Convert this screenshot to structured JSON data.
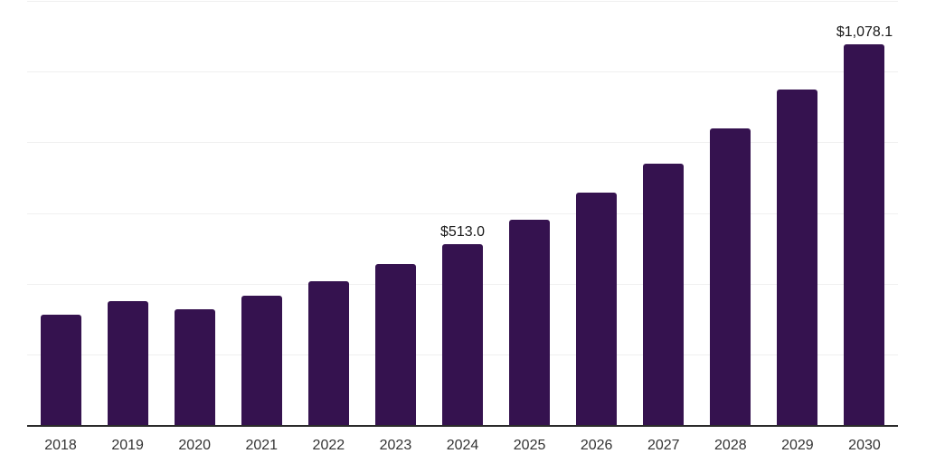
{
  "chart_data": {
    "type": "bar",
    "title": "",
    "xlabel": "",
    "ylabel": "",
    "categories": [
      "2018",
      "2019",
      "2020",
      "2021",
      "2022",
      "2023",
      "2024",
      "2025",
      "2026",
      "2027",
      "2028",
      "2029",
      "2030"
    ],
    "values": [
      313,
      351,
      327,
      367,
      407,
      455,
      513.0,
      580,
      658,
      739,
      838,
      949,
      1078.1
    ],
    "data_labels": {
      "2024": "$513.0",
      "2030": "$1,078.1"
    },
    "ylim": [
      0,
      1200
    ],
    "gridlines_at": [
      200,
      400,
      600,
      800,
      1000,
      1200
    ],
    "grid": true,
    "legend": false,
    "y_axis_tick_labels_visible": false
  },
  "colors": {
    "bar": "#35124f",
    "gridline": "#f0f0f0",
    "axis": "#2b2b2b",
    "data-label": "#1a1a1a",
    "tick-label": "#333333",
    "background": "#ffffff"
  }
}
